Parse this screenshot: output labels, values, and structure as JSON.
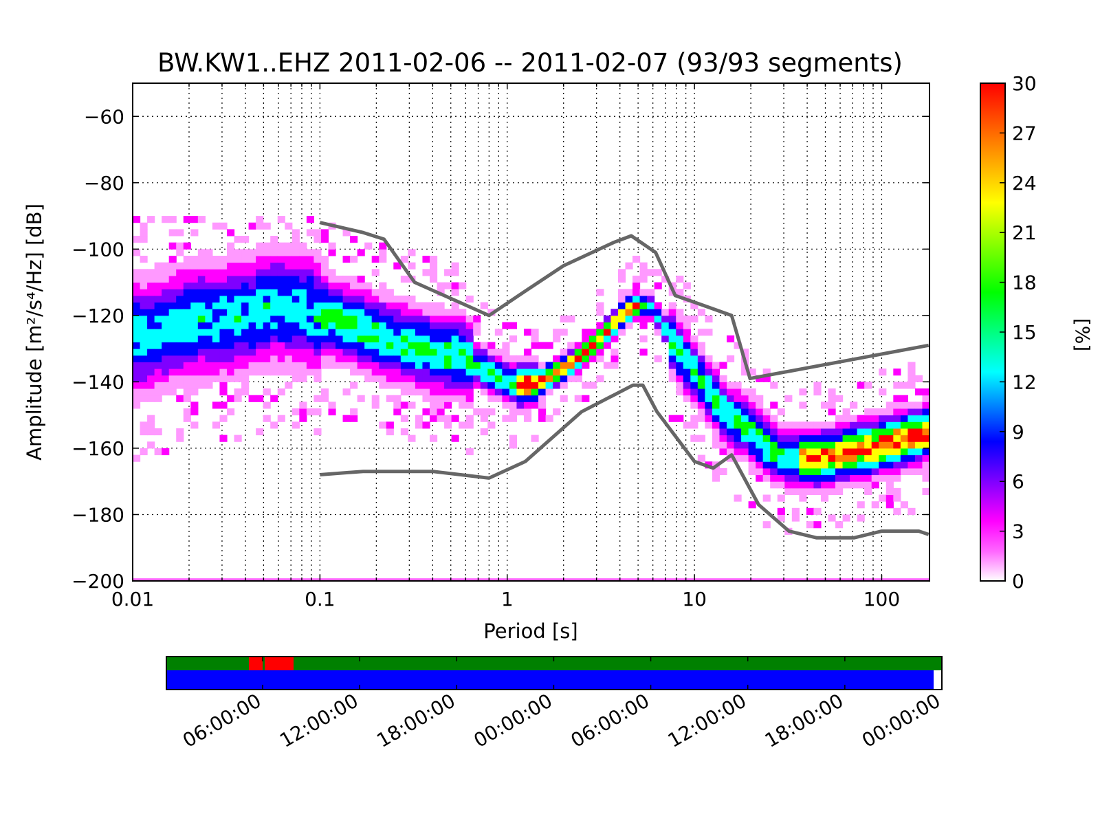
{
  "chart_data": [
    {
      "type": "heatmap",
      "title": "BW.KW1..EHZ   2011-02-06 -- 2011-02-07  (93/93 segments)",
      "xlabel": "Period [s]",
      "ylabel": "Amplitude [m²/s⁴/Hz] [dB]",
      "x_scale": "log",
      "xlim": [
        0.01,
        180
      ],
      "ylim": [
        -200,
        -50
      ],
      "xticks": [
        0.01,
        0.1,
        1,
        10,
        100
      ],
      "xtick_labels": [
        "0.01",
        "0.1",
        "1",
        "10",
        "100"
      ],
      "yticks": [
        -200,
        -180,
        -160,
        -140,
        -120,
        -100,
        -80,
        -60
      ],
      "ytick_labels": [
        "−200",
        "−180",
        "−160",
        "−140",
        "−120",
        "−100",
        "−80",
        "−60"
      ],
      "grid": true,
      "colorbar": {
        "label": "[%]",
        "range": [
          0,
          30
        ],
        "ticks": [
          "0",
          "3",
          "6",
          "9",
          "12",
          "15",
          "18",
          "21",
          "24",
          "27",
          "30"
        ],
        "colors": [
          "#ffffff",
          "#ff00ff",
          "#7f00ff",
          "#0000ff",
          "#00ffff",
          "#00ff00",
          "#ffff00",
          "#ff8000",
          "#ff0000"
        ]
      },
      "mode_curve": {
        "period": [
          0.01,
          0.013,
          0.016,
          0.02,
          0.03,
          0.04,
          0.05,
          0.06,
          0.08,
          0.1,
          0.15,
          0.2,
          0.3,
          0.4,
          0.5,
          0.6,
          0.8,
          1.0,
          1.2,
          1.5,
          2.0,
          2.5,
          3.0,
          3.5,
          4.0,
          4.5,
          5.0,
          5.5,
          6.0,
          7.0,
          8.0,
          10,
          12,
          15,
          20,
          25,
          30,
          40,
          50,
          70,
          100,
          140,
          180
        ],
        "amplitude_db": [
          -127,
          -126,
          -124,
          -122,
          -121,
          -120,
          -118,
          -117,
          -118,
          -120,
          -123,
          -126,
          -129,
          -131,
          -132,
          -133,
          -137,
          -140,
          -141,
          -140,
          -136,
          -132,
          -128,
          -124,
          -121,
          -118,
          -117,
          -117,
          -118,
          -124,
          -130,
          -137,
          -143,
          -150,
          -155,
          -160,
          -163,
          -163,
          -163,
          -161,
          -159,
          -157,
          -155
        ]
      },
      "series": [
        {
          "name": "",
          "period": [
            0.1,
            0.17,
            0.22,
            0.32,
            0.8,
            1.15,
            2.0,
            3.7,
            4.6,
            6.2,
            7.9,
            10,
            15.8,
            19.8,
            178
          ],
          "amplitude_db": [
            -92,
            -95,
            -97,
            -110,
            -120,
            -114,
            -105,
            -98,
            -96,
            -101,
            -114,
            -116,
            -120,
            -139,
            -129
          ]
        },
        {
          "name": "",
          "period": [
            0.1,
            0.17,
            0.4,
            0.8,
            1.25,
            2.5,
            4.7,
            5.3,
            6.3,
            10,
            12.6,
            15.8,
            22,
            32,
            45,
            71,
            100,
            158,
            178
          ],
          "amplitude_db": [
            -168,
            -167,
            -167,
            -169,
            -164,
            -149,
            -141,
            -141,
            -149,
            -164,
            -166,
            -162,
            -177,
            -185,
            -187,
            -187,
            -185,
            -185,
            -186
          ]
        }
      ]
    },
    {
      "type": "timeline",
      "xtick_labels": [
        "06:00:00",
        "12:00:00",
        "18:00:00",
        "00:00:00",
        "06:00:00",
        "12:00:00",
        "18:00:00",
        "00:00:00"
      ],
      "top_strip_color": "#008000",
      "bottom_strip_color": "#0000ff",
      "gap_color": "#ff0000"
    }
  ]
}
